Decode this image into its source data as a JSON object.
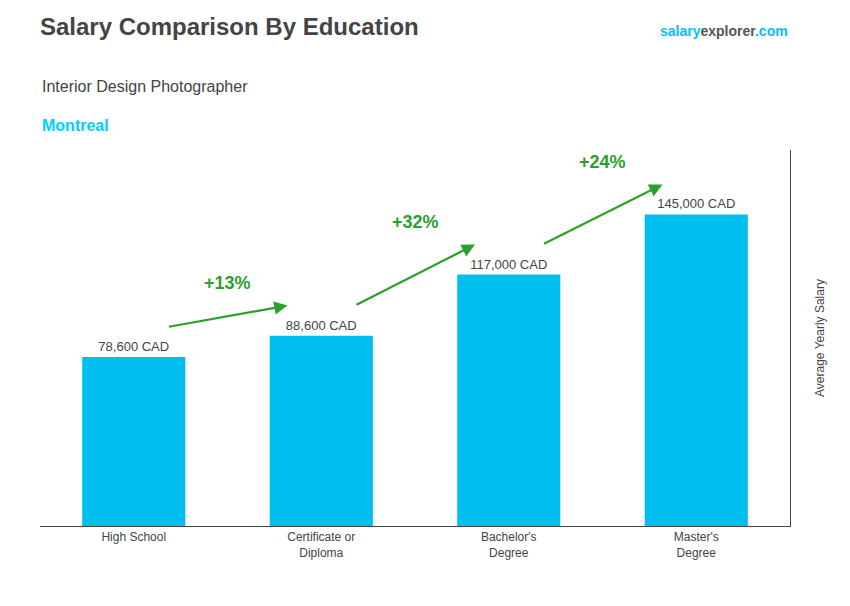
{
  "chart_data": {
    "type": "bar",
    "title": "Salary Comparison By Education",
    "subtitle": "Interior Design Photographer",
    "ylabel": "Average Yearly Salary",
    "categories": [
      "High School",
      "Certificate or\nDiploma",
      "Bachelor's\nDegree",
      "Master's\nDegree"
    ],
    "values": [
      78600,
      88600,
      117000,
      145000
    ],
    "value_labels": [
      "78,600 CAD",
      "88,600 CAD",
      "117,000 CAD",
      "145,000 CAD"
    ],
    "data_labels": true,
    "color": "#00BFEF",
    "ylim": [
      0,
      175000
    ],
    "tick_labels": "x",
    "grid": false,
    "annotations": [
      {
        "text": "Montreal",
        "color": "#00CFFF"
      },
      {
        "parts": [
          {
            "text": "salary",
            "color": "#00BFFF"
          },
          {
            "text": "explorer",
            "color": "#555555"
          },
          {
            "text": ".com",
            "color": "#00BFFF"
          }
        ]
      },
      {
        "text": "+13%",
        "from": 0,
        "to": 1,
        "color": "#2ca02c"
      },
      {
        "text": "+32%",
        "from": 1,
        "to": 2,
        "color": "#2ca02c"
      },
      {
        "text": "+24%",
        "from": 2,
        "to": 3,
        "color": "#2ca02c"
      }
    ]
  }
}
